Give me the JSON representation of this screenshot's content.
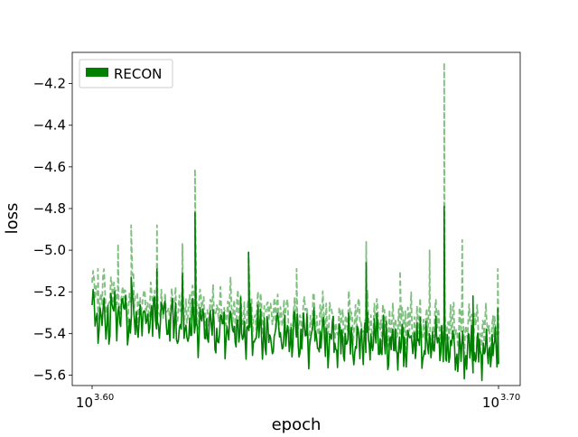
{
  "chart_data": {
    "type": "line",
    "title": "",
    "xlabel": "epoch",
    "ylabel": "loss",
    "xscale": "log",
    "xlim": [
      3981,
      5012
    ],
    "ylim": [
      -5.65,
      -4.05
    ],
    "x_ticks": [
      {
        "base": "10",
        "exp": "3.60",
        "value": 3981
      },
      {
        "base": "10",
        "exp": "3.70",
        "value": 5012
      }
    ],
    "y_ticks": [
      {
        "label": "−4.2",
        "value": -4.2
      },
      {
        "label": "−4.4",
        "value": -4.4
      },
      {
        "label": "−4.6",
        "value": -4.6
      },
      {
        "label": "−4.8",
        "value": -4.8
      },
      {
        "label": "−5.0",
        "value": -5.0
      },
      {
        "label": "−5.2",
        "value": -5.2
      },
      {
        "label": "−5.4",
        "value": -5.4
      },
      {
        "label": "−5.6",
        "value": -5.6
      }
    ],
    "legend": {
      "position": "top-left",
      "entries": [
        "RECON"
      ]
    },
    "grid": false,
    "colors": {
      "solid": "#008000",
      "dashed": "#7fbf7f"
    },
    "series": [
      {
        "name": "RECON",
        "style": "solid",
        "trend": [
          [
            3981,
            -5.3
          ],
          [
            4180,
            -5.36
          ],
          [
            4400,
            -5.4
          ],
          [
            4600,
            -5.43
          ],
          [
            4800,
            -5.46
          ],
          [
            5012,
            -5.47
          ]
        ],
        "spikes": [
          [
            4070,
            -5.13
          ],
          [
            4130,
            -5.09
          ],
          [
            4190,
            -5.11
          ],
          [
            4220,
            -4.82
          ],
          [
            4350,
            -5.01
          ],
          [
            4650,
            -5.06
          ],
          [
            4860,
            -4.79
          ],
          [
            4940,
            -5.22
          ],
          [
            5010,
            -5.28
          ]
        ]
      },
      {
        "name": "",
        "style": "dashed",
        "trend": [
          [
            3981,
            -5.21
          ],
          [
            4180,
            -5.27
          ],
          [
            4400,
            -5.3
          ],
          [
            4600,
            -5.34
          ],
          [
            4800,
            -5.36
          ],
          [
            5012,
            -5.39
          ]
        ],
        "spikes": [
          [
            3994,
            -5.09
          ],
          [
            4040,
            -4.97
          ],
          [
            4070,
            -4.88
          ],
          [
            4130,
            -4.88
          ],
          [
            4190,
            -4.97
          ],
          [
            4220,
            -4.61
          ],
          [
            4350,
            -5.01
          ],
          [
            4470,
            -5.09
          ],
          [
            4650,
            -4.96
          ],
          [
            4740,
            -5.1
          ],
          [
            4820,
            -5.0
          ],
          [
            4860,
            -4.1
          ],
          [
            4910,
            -4.95
          ],
          [
            5010,
            -5.09
          ]
        ]
      }
    ]
  }
}
